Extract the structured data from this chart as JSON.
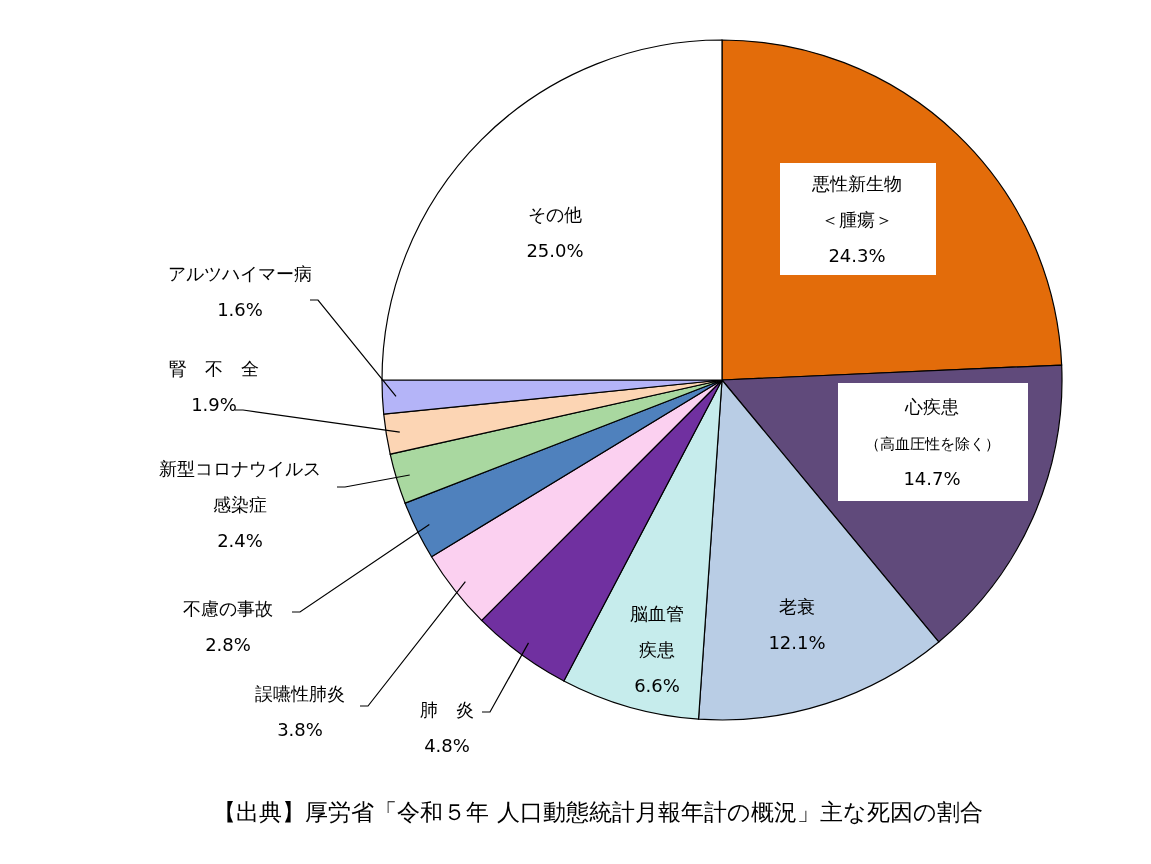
{
  "chart_data": {
    "type": "pie",
    "categories": [
      "悪性新生物＜腫瘍＞",
      "心疾患（高血圧性を除く）",
      "老衰",
      "脳血管疾患",
      "肺　炎",
      "誤嚥性肺炎",
      "不慮の事故",
      "新型コロナウイルス感染症",
      "腎　不　全",
      "アルツハイマー病",
      "その他"
    ],
    "values": [
      24.3,
      14.7,
      12.1,
      6.6,
      4.8,
      3.8,
      2.8,
      2.4,
      1.9,
      1.6,
      25.0
    ],
    "value_labels": [
      "24.3%",
      "14.7%",
      "12.1%",
      "6.6%",
      "4.8%",
      "3.8%",
      "2.8%",
      "2.4%",
      "1.9%",
      "1.6%",
      "25.0%"
    ],
    "colors": [
      "#e36c0a",
      "#604a7b",
      "#b9cde5",
      "#c6ecec",
      "#7030a0",
      "#fbd0f0",
      "#4f81bd",
      "#a9d8a0",
      "#fcd5b4",
      "#b4b4f8",
      "#ffffff"
    ],
    "annotations": [
      "【出典】厚労省「令和５年 人口動態統計月報年計の概況」主な死因の割合"
    ]
  }
}
